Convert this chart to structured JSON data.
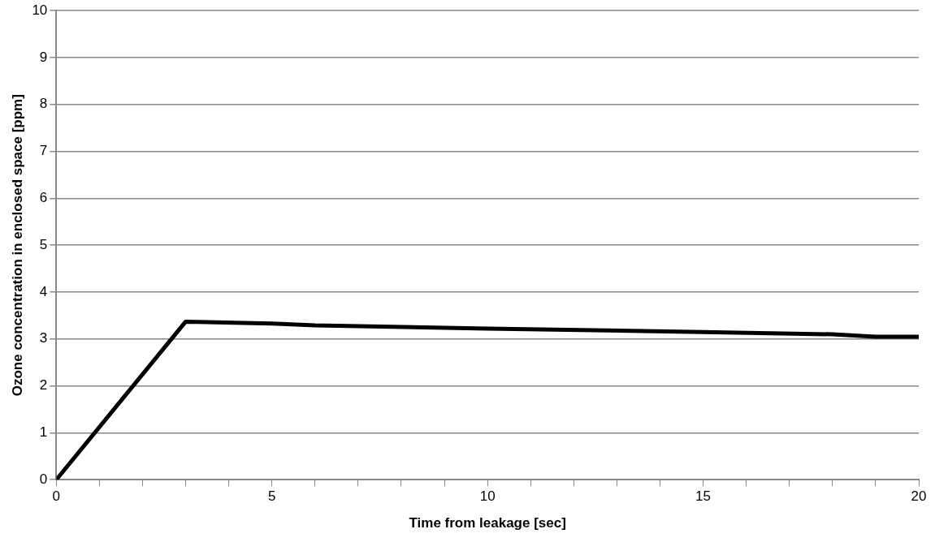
{
  "chart_data": {
    "type": "line",
    "xlabel": "Time from leakage [sec]",
    "ylabel": "Ozone concentration in enclosed space [ppm]",
    "x": [
      0,
      3,
      5,
      6,
      10,
      15,
      18,
      19,
      20
    ],
    "series": [
      {
        "color": "#000000",
        "values": [
          0,
          3.37,
          3.33,
          3.29,
          3.22,
          3.15,
          3.1,
          3.05,
          3.05
        ]
      }
    ],
    "xlim": [
      0,
      20
    ],
    "xticks": [
      0,
      {
        "value": 1,
        "label": null
      },
      {
        "value": 2,
        "label": null
      },
      {
        "value": 3,
        "label": null
      },
      {
        "value": 4,
        "label": null
      },
      5,
      {
        "value": 6,
        "label": null
      },
      {
        "value": 7,
        "label": null
      },
      {
        "value": 8,
        "label": null
      },
      {
        "value": 9,
        "label": null
      },
      10,
      {
        "value": 11,
        "label": null
      },
      {
        "value": 12,
        "label": null
      },
      {
        "value": 13,
        "label": null
      },
      {
        "value": 14,
        "label": null
      },
      15,
      {
        "value": 16,
        "label": null
      },
      {
        "value": 17,
        "label": null
      },
      {
        "value": 18,
        "label": null
      },
      {
        "value": 19,
        "label": null
      },
      20
    ],
    "ylim": [
      0,
      10
    ],
    "yticks": [
      0,
      1,
      2,
      3,
      4,
      5,
      6,
      7,
      8,
      9,
      10
    ],
    "grid": "y",
    "legend": false,
    "marker": "none",
    "line_style": "solid"
  }
}
